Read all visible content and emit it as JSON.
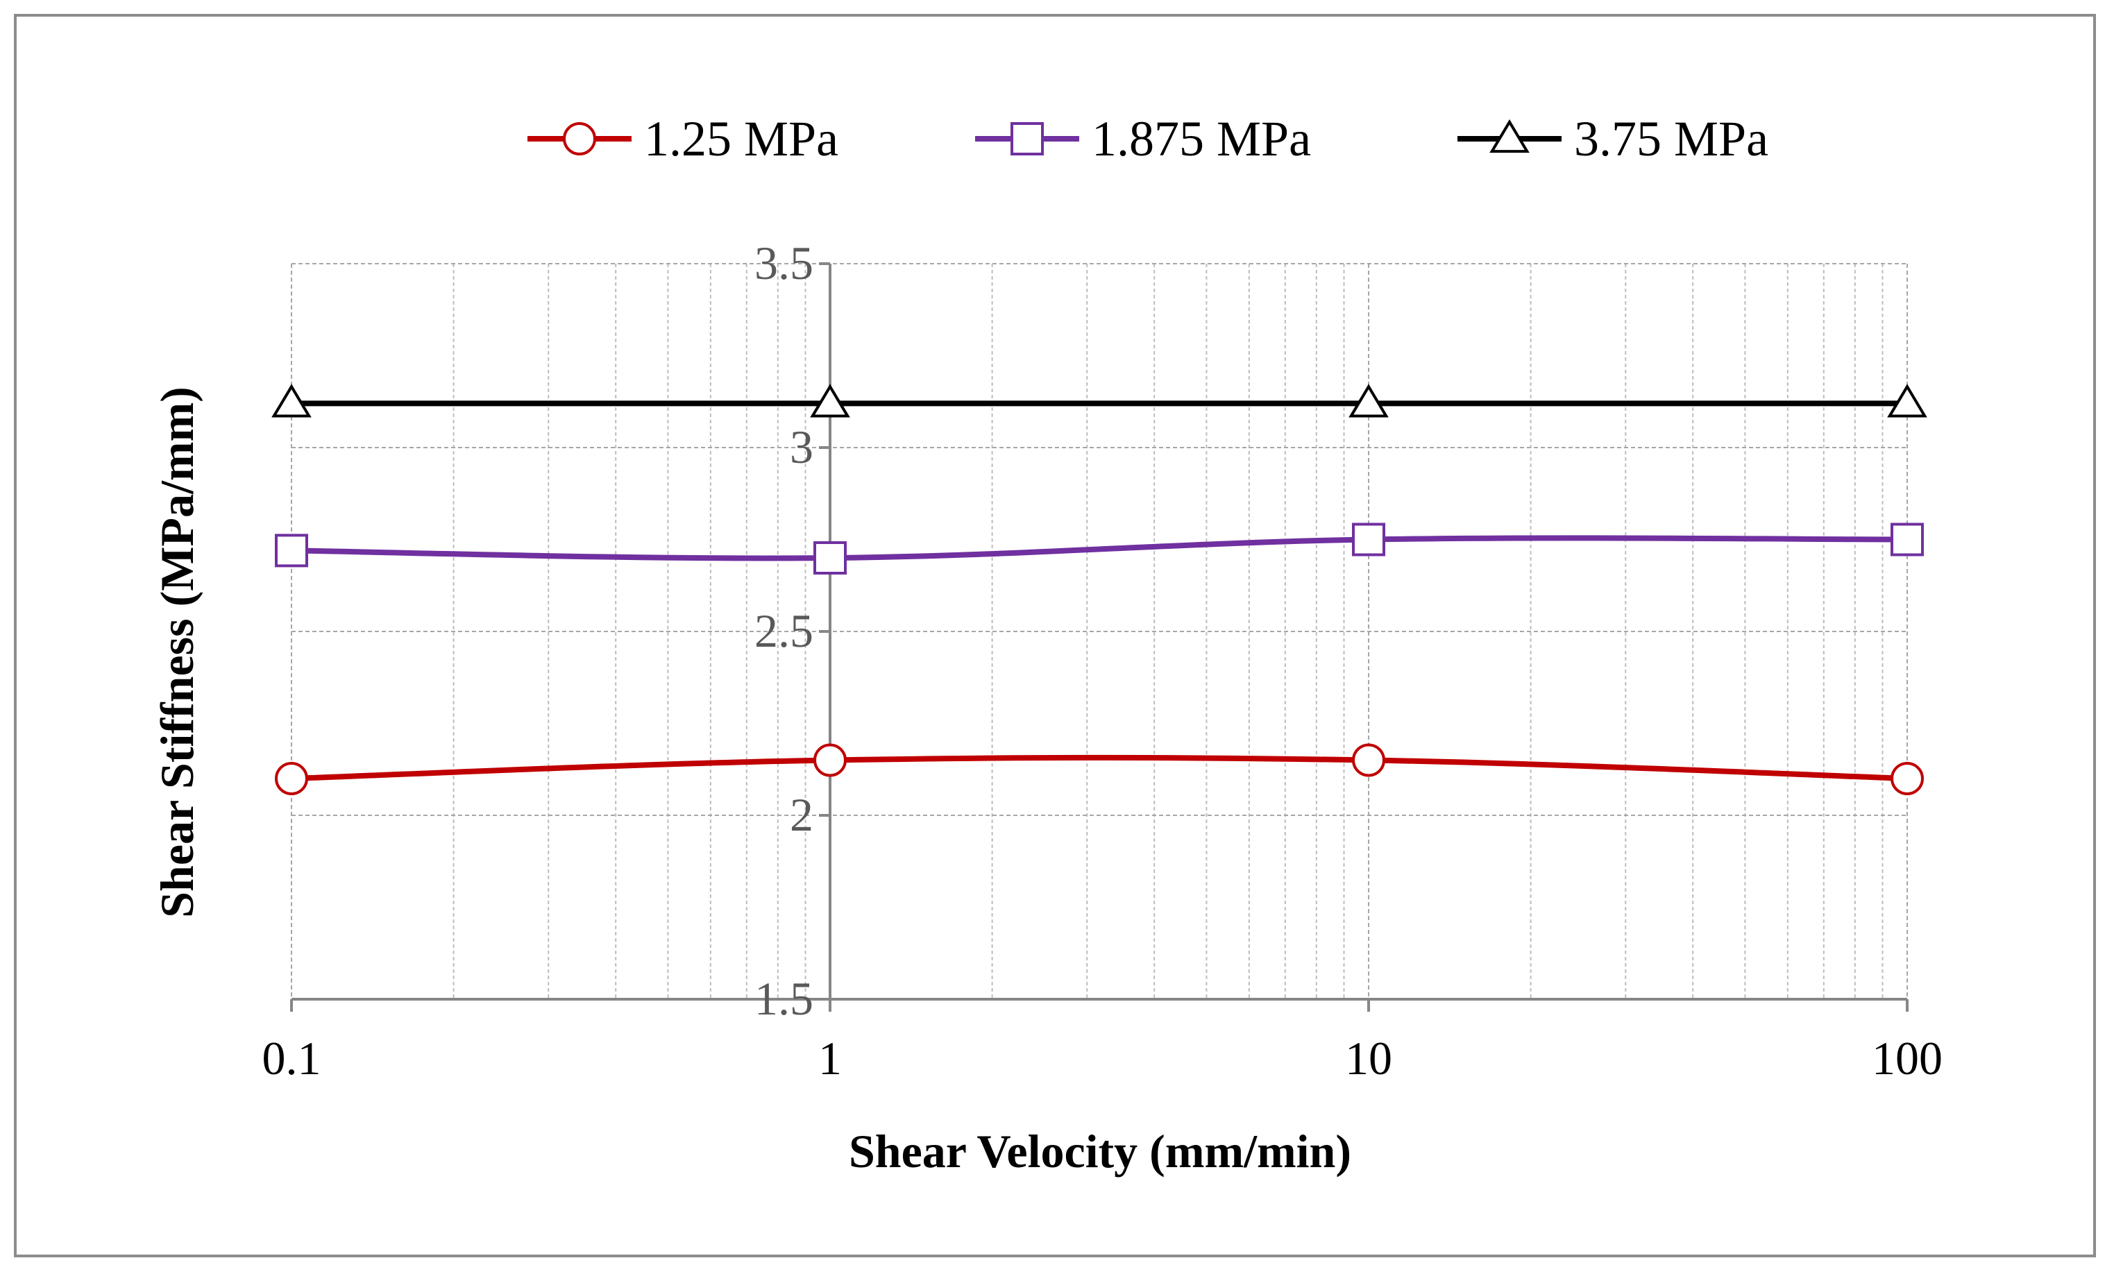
{
  "chart_data": {
    "type": "line",
    "title": "",
    "xlabel": "Shear Velocity (mm/min)",
    "ylabel": "Shear Stiffness (MPa/mm)",
    "x_scale": "log",
    "xlim": [
      0.1,
      100
    ],
    "ylim": [
      1.5,
      3.5
    ],
    "x_ticks": [
      0.1,
      1,
      10,
      100
    ],
    "x_tick_labels": [
      "0.1",
      "1",
      "10",
      "100"
    ],
    "y_ticks": [
      1.5,
      2,
      2.5,
      3,
      3.5
    ],
    "y_tick_labels": [
      "1.5",
      "2",
      "2.5",
      "3",
      "3.5"
    ],
    "grid": true,
    "legend_position": "top",
    "x": [
      0.1,
      1,
      10,
      100
    ],
    "series": [
      {
        "name": "1.25 MPa",
        "values": [
          2.1,
          2.15,
          2.15,
          2.1
        ],
        "color": "#c00000",
        "marker": "circle"
      },
      {
        "name": "1.875 MPa",
        "values": [
          2.72,
          2.7,
          2.75,
          2.75
        ],
        "color": "#7030a0",
        "marker": "square"
      },
      {
        "name": "3.75 MPa",
        "values": [
          3.12,
          3.12,
          3.12,
          3.12
        ],
        "color": "#000000",
        "marker": "triangle"
      }
    ]
  }
}
